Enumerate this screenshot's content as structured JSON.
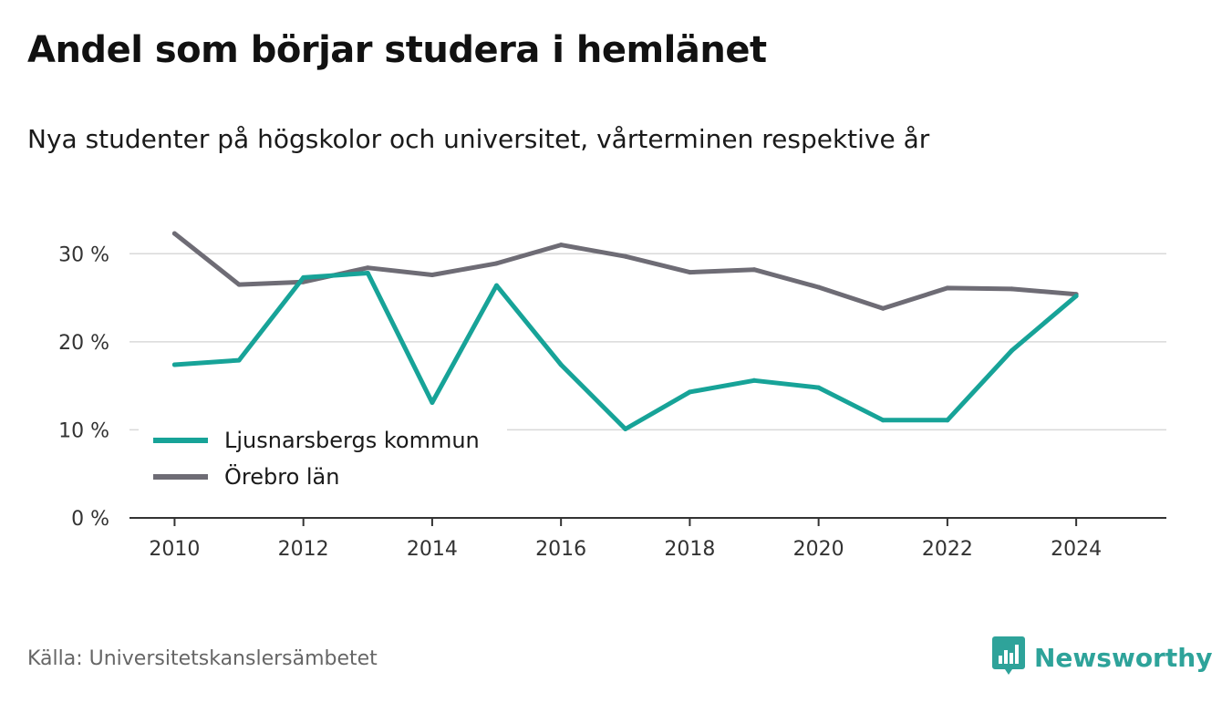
{
  "header": {
    "title": "Andel som börjar studera i hemlänet",
    "subtitle": "Nya studenter på högskolor och universitet, vårterminen respektive år"
  },
  "footer": {
    "source": "Källa: Universitetskanslersämbetet",
    "brand": "Newsworthy",
    "brand_icon": "bar-chart-speech-bubble-icon"
  },
  "colors": {
    "series1": "#17a398",
    "series2": "#6e6c75",
    "grid": "#d9d9d9",
    "axis": "#333333",
    "brand": "#2ea39a"
  },
  "chart_data": {
    "type": "line",
    "title": "Andel som börjar studera i hemlänet",
    "subtitle": "Nya studenter på högskolor och universitet, vårterminen respektive år",
    "xlabel": "",
    "ylabel": "",
    "x": [
      2010,
      2011,
      2012,
      2013,
      2014,
      2015,
      2016,
      2017,
      2018,
      2019,
      2020,
      2021,
      2022,
      2023,
      2024
    ],
    "x_ticks": [
      "2010",
      "2012",
      "2014",
      "2016",
      "2018",
      "2020",
      "2022",
      "2024"
    ],
    "x_tick_values": [
      2010,
      2012,
      2014,
      2016,
      2018,
      2020,
      2022,
      2024
    ],
    "xlim": [
      2009.3,
      2025.4
    ],
    "ylim": [
      0,
      35
    ],
    "y_ticks": [
      0,
      10,
      20,
      30
    ],
    "y_tick_labels": [
      "0 %",
      "10 %",
      "20 %",
      "30 %"
    ],
    "grid": true,
    "legend_position": "bottom-left",
    "series": [
      {
        "name": "Ljusnarsbergs kommun",
        "color": "#17a398",
        "values": [
          17.4,
          17.9,
          27.3,
          27.8,
          13.1,
          26.4,
          17.4,
          10.1,
          14.3,
          15.6,
          14.8,
          11.1,
          11.1,
          19.0,
          25.2
        ]
      },
      {
        "name": "Örebro län",
        "color": "#6e6c75",
        "values": [
          32.3,
          26.5,
          26.8,
          28.4,
          27.6,
          28.9,
          31.0,
          29.7,
          27.9,
          28.2,
          26.2,
          23.8,
          26.1,
          26.0,
          25.4
        ]
      }
    ]
  }
}
